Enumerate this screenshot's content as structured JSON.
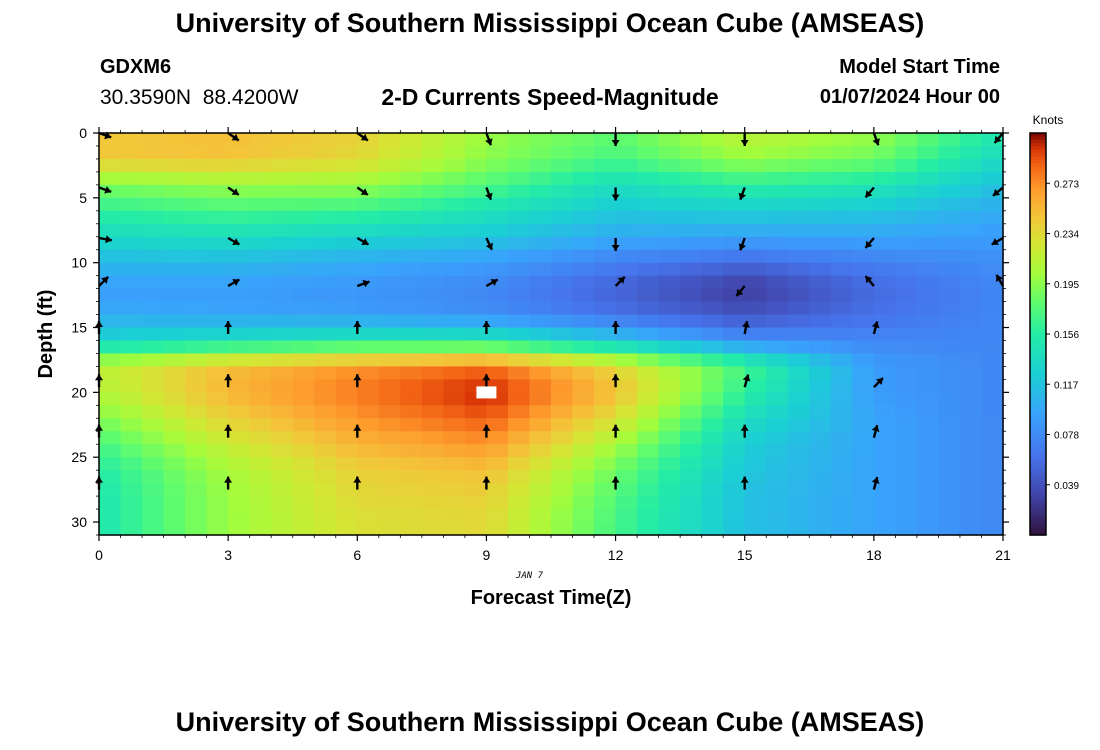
{
  "header": {
    "title": "University of Southern Mississippi Ocean Cube (AMSEAS)",
    "station": "GDXM6",
    "coords": "30.3590N  88.4200W",
    "subtitle": "2-D Currents Speed-Magnitude",
    "model_start_label": "Model Start Time",
    "model_start_value": "01/07/2024 Hour 00"
  },
  "footer": {
    "title": "University of Southern Mississippi Ocean Cube (AMSEAS)"
  },
  "colors": {
    "frame": "#000000",
    "marker": "#ffffff"
  },
  "chart_data": {
    "type": "heatmap",
    "title": "2-D Currents Speed-Magnitude",
    "xlabel": "Forecast Time(Z)",
    "ylabel": "Depth (ft)",
    "date_label": "JAN 7",
    "xlim": [
      0,
      21
    ],
    "ylim": [
      0,
      31
    ],
    "xticks": [
      0,
      3,
      6,
      9,
      12,
      15,
      18,
      21
    ],
    "yticks": [
      0,
      5,
      10,
      15,
      20,
      25,
      30
    ],
    "colorbar": {
      "label": "Knots",
      "min": 0.0,
      "max": 0.312,
      "ticks": [
        "0.273",
        "0.234",
        "0.195",
        "0.156",
        "0.117",
        "0.078",
        "0.039"
      ],
      "tick_values": [
        0.273,
        0.234,
        0.195,
        0.156,
        0.117,
        0.078,
        0.039
      ]
    },
    "speed_field_knots": {
      "x_step_hours": 0.5,
      "depths_ft": [
        0,
        2,
        4,
        6,
        8,
        10,
        12,
        14,
        16,
        18,
        20,
        22,
        24,
        26,
        28,
        30
      ],
      "times_h": [
        0,
        3,
        6,
        9,
        12,
        15,
        18,
        21
      ],
      "values": [
        [
          0.245,
          0.25,
          0.24,
          0.2,
          0.18,
          0.215,
          0.2,
          0.15
        ],
        [
          0.245,
          0.248,
          0.235,
          0.195,
          0.17,
          0.2,
          0.185,
          0.135
        ],
        [
          0.19,
          0.2,
          0.2,
          0.175,
          0.14,
          0.16,
          0.15,
          0.115
        ],
        [
          0.16,
          0.17,
          0.165,
          0.145,
          0.12,
          0.125,
          0.12,
          0.1
        ],
        [
          0.135,
          0.14,
          0.13,
          0.12,
          0.1,
          0.095,
          0.095,
          0.09
        ],
        [
          0.11,
          0.11,
          0.1,
          0.09,
          0.07,
          0.055,
          0.07,
          0.08
        ],
        [
          0.09,
          0.09,
          0.085,
          0.075,
          0.05,
          0.025,
          0.055,
          0.075
        ],
        [
          0.1,
          0.095,
          0.09,
          0.08,
          0.06,
          0.04,
          0.06,
          0.075
        ],
        [
          0.13,
          0.14,
          0.15,
          0.15,
          0.12,
          0.08,
          0.075,
          0.075
        ],
        [
          0.215,
          0.25,
          0.27,
          0.285,
          0.235,
          0.17,
          0.09,
          0.075
        ],
        [
          0.21,
          0.255,
          0.28,
          0.305,
          0.25,
          0.16,
          0.09,
          0.075
        ],
        [
          0.19,
          0.24,
          0.27,
          0.29,
          0.23,
          0.14,
          0.095,
          0.075
        ],
        [
          0.17,
          0.22,
          0.255,
          0.27,
          0.205,
          0.125,
          0.095,
          0.075
        ],
        [
          0.155,
          0.205,
          0.24,
          0.25,
          0.185,
          0.12,
          0.095,
          0.075
        ],
        [
          0.15,
          0.2,
          0.235,
          0.24,
          0.175,
          0.115,
          0.095,
          0.075
        ],
        [
          0.15,
          0.2,
          0.23,
          0.235,
          0.17,
          0.115,
          0.095,
          0.075
        ]
      ]
    },
    "vectors": {
      "times_h": [
        0,
        3,
        6,
        9,
        12,
        15,
        18,
        21
      ],
      "depths_ft": [
        0,
        4.2,
        8.1,
        11.8,
        15.5,
        19.6,
        23.5,
        27.5
      ],
      "direction_deg_from_north": [
        [
          110,
          125,
          125,
          160,
          180,
          180,
          160,
          220
        ],
        [
          110,
          125,
          125,
          160,
          180,
          200,
          220,
          230
        ],
        [
          100,
          120,
          120,
          155,
          180,
          200,
          220,
          240
        ],
        [
          45,
          60,
          70,
          60,
          45,
          220,
          320,
          330
        ],
        [
          0,
          0,
          0,
          0,
          0,
          10,
          15,
          null
        ],
        [
          0,
          0,
          0,
          0,
          0,
          15,
          45,
          null
        ],
        [
          0,
          0,
          0,
          0,
          0,
          0,
          15,
          null
        ],
        [
          0,
          0,
          0,
          0,
          0,
          0,
          15,
          null
        ]
      ]
    },
    "marker": {
      "time_h": 9,
      "depth_ft": 20
    }
  }
}
